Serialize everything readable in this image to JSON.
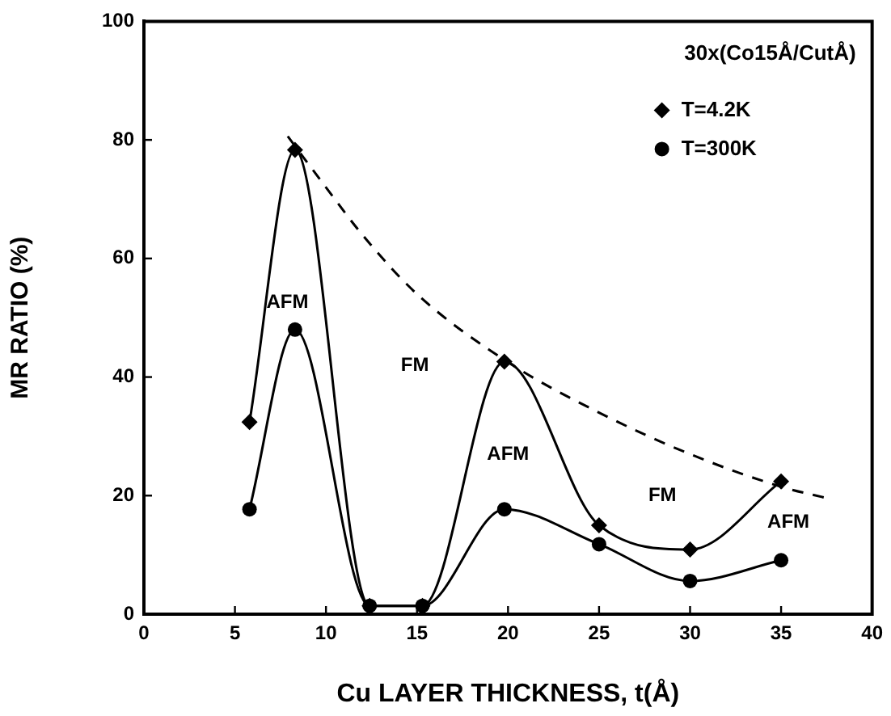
{
  "chart_data": {
    "type": "line",
    "xlabel": "Cu LAYER THICKNESS, t(Å)",
    "ylabel": "MR RATIO (%)",
    "xlim": [
      0,
      40
    ],
    "xticks": [
      0,
      5,
      10,
      15,
      20,
      25,
      30,
      35,
      40
    ],
    "ylim": [
      0,
      100
    ],
    "yticks": [
      0,
      20,
      40,
      60,
      80,
      100
    ],
    "grid": false,
    "legend": "top right",
    "series": [
      {
        "name": "T=4.2K",
        "color": "#000000",
        "marker": "diamond",
        "line_style": "solid",
        "x": [
          5.8,
          8.3,
          12.4,
          15.3,
          19.8,
          25,
          30,
          35
        ],
        "values": [
          32.4,
          78.3,
          1.4,
          1.4,
          42.6,
          15,
          10.9,
          22.4
        ]
      },
      {
        "name": "T=300K",
        "color": "#000000",
        "marker": "circle",
        "line_style": "solid",
        "x": [
          5.8,
          8.3,
          12.4,
          15.3,
          19.8,
          25,
          30,
          35
        ],
        "values": [
          17.7,
          48,
          1.4,
          1.4,
          17.7,
          11.8,
          5.6,
          9.1
        ]
      },
      {
        "color": "#000000",
        "marker": "none",
        "line_style": "dashed",
        "x": [
          7.9,
          10,
          12,
          15,
          20,
          25,
          30,
          35,
          37.6
        ],
        "values": [
          80.6,
          72,
          64,
          54,
          42.5,
          34,
          27,
          21.5,
          19.5
        ]
      }
    ],
    "annotations": [
      "30x(Co15Å/CutÅ)",
      "AFM",
      "FM",
      "AFM",
      "FM",
      "AFM"
    ]
  }
}
